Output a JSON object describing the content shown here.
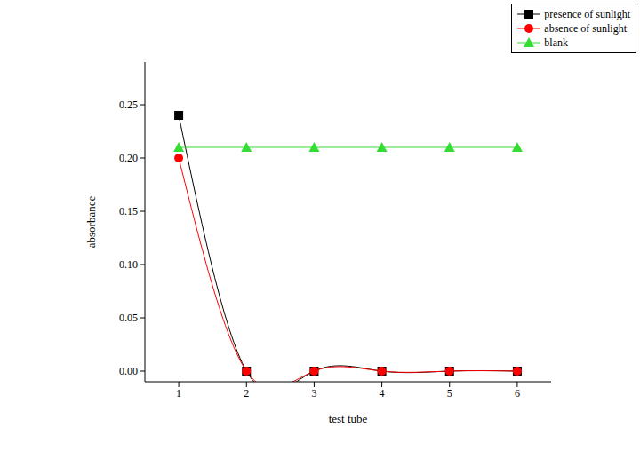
{
  "chart_data": {
    "type": "line",
    "x_label": "test tube",
    "y_label": "absorbance",
    "x": [
      1,
      2,
      3,
      4,
      5,
      6
    ],
    "xlim": [
      0.5,
      6.5
    ],
    "xticks": [
      1,
      2,
      3,
      4,
      5,
      6
    ],
    "ylim": [
      -0.01,
      0.29
    ],
    "yticks": [
      {
        "value": 0,
        "label": "0.00"
      },
      {
        "value": 0.05,
        "label": "0.05"
      },
      {
        "value": 0.1,
        "label": "0.10"
      },
      {
        "value": 0.15,
        "label": "0.15"
      },
      {
        "value": 0.2,
        "label": "0.20"
      },
      {
        "value": 0.25,
        "label": "0.25"
      }
    ],
    "grid": false,
    "legend": "upper right",
    "series": [
      {
        "name": "presence of sunlight",
        "color": "#000000",
        "marker": "square",
        "line_style": "solid",
        "values": [
          0.24,
          0,
          0,
          0,
          0,
          0
        ]
      },
      {
        "name": "absence of sunlight",
        "color": "#ff0000",
        "marker": "circle",
        "line_style": "solid",
        "values": [
          0.2,
          0,
          0,
          0,
          0,
          0
        ]
      },
      {
        "name": "blank",
        "color": "#33dd33",
        "marker": "triangle",
        "line_style": "solid",
        "values": [
          0.21,
          0.21,
          0.21,
          0.21,
          0.21,
          0.21
        ]
      }
    ]
  }
}
